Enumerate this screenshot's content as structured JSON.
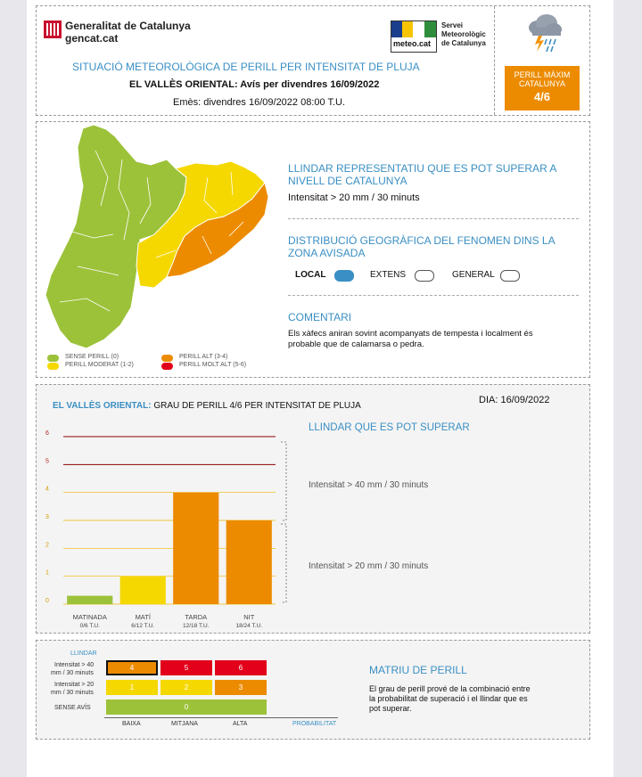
{
  "header": {
    "gencat_line1": "Generalitat de Catalunya",
    "gencat_line2": "gencat.cat",
    "meteo_logo_text": "meteo.cat",
    "smc_line1": "Servei",
    "smc_line2": "Meteorològic",
    "smc_line3": "de Catalunya",
    "title": "SITUACIÓ METEOROLÒGICA DE PERILL PER INTENSITAT DE PLUJA",
    "subtitle": "EL VALLÈS ORIENTAL: Avís per divendres 16/09/2022",
    "issued": "Emès: divendres 16/09/2022 08:00 T.U.",
    "max_label_1": "PERILL MÀXIM",
    "max_label_2": "CATALUNYA",
    "max_value": "4/6",
    "weather_icon": "storm-rain-icon"
  },
  "map_section": {
    "threshold_title_1": "LLINDAR REPRESENTATIU QUE ES POT SUPERAR A",
    "threshold_title_2": "NIVELL DE CATALUNYA",
    "threshold_value": "Intensitat > 20 mm / 30 minuts",
    "distribution_title_1": "DISTRIBUCIÓ GEOGRÀFICA DEL FENOMEN DINS LA",
    "distribution_title_2": "ZONA AVISADA",
    "options": [
      {
        "label": "LOCAL",
        "selected": true
      },
      {
        "label": "EXTENS",
        "selected": false
      },
      {
        "label": "GENERAL",
        "selected": false
      }
    ],
    "comment_title": "COMENTARI",
    "comment_1": "Els xàfecs aniran sovint acompanyats de tempesta i localment és",
    "comment_2": "probable que de calamarsa o pedra.",
    "legend": [
      {
        "label": "SENSE PERILL (0)",
        "color": "#9cc23a"
      },
      {
        "label": "PERILL MODERAT (1-2)",
        "color": "#f5d800"
      },
      {
        "label": "PERILL ALT (3-4)",
        "color": "#ec8b00"
      },
      {
        "label": "PERILL MOLT ALT (5-6)",
        "color": "#e2001a"
      }
    ]
  },
  "grade_section": {
    "region": "EL VALLÈS ORIENTAL:",
    "title": "GRAU DE PERILL 4/6 PER INTENSITAT DE PLUJA",
    "date": "DIA: 16/09/2022",
    "threshold_header": "LLINDAR QUE ES POT SUPERAR",
    "threshold_high": "Intensitat > 40 mm / 30 minuts",
    "threshold_low": "Intensitat > 20 mm / 30 minuts"
  },
  "chart_data": {
    "type": "bar",
    "categories": [
      "MATINADA",
      "MATÍ",
      "TARDA",
      "NIT"
    ],
    "category_hours": [
      "0/6 T.U.",
      "6/12 T.U.",
      "12/18 T.U.",
      "18/24 T.U."
    ],
    "values": [
      0.3,
      1,
      4,
      3
    ],
    "colors": [
      "#9cc23a",
      "#f5d800",
      "#ec8b00",
      "#ec8b00"
    ],
    "yticks": [
      "0",
      "1",
      "2",
      "3",
      "4",
      "5",
      "6"
    ],
    "ylim": [
      0,
      6
    ]
  },
  "matrix": {
    "header": "LLINDAR",
    "row_high_1": "Intensitat > 40",
    "row_high_2": "mm / 30 minuts",
    "row_low_1": "Intensitat > 20",
    "row_low_2": "mm / 30 minuts",
    "row_none": "SENSE AVÍS",
    "high_values": [
      "4",
      "5",
      "6"
    ],
    "low_values": [
      "1",
      "2",
      "3"
    ],
    "none_value": "0",
    "col_labels": [
      "BAIXA",
      "MITJANA",
      "ALTA"
    ],
    "axis_label": "PROBABILITAT",
    "title": "MATRIU DE PERILL",
    "text_1": "El grau de perill prové de la combinació entre",
    "text_2": "la probabilitat de superació i el llindar que es",
    "text_3": "pot superar."
  }
}
